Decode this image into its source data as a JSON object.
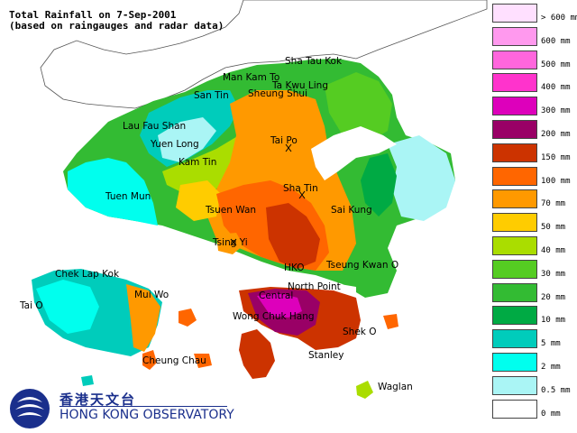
{
  "title": {
    "line1": "Total Rainfall on 7-Sep-2001",
    "line2": "(based on raingauges and radar data)"
  },
  "legend": [
    {
      "label": "> 600 mm",
      "color": "#ffe0ff"
    },
    {
      "label": "600 mm",
      "color": "#ff99ee"
    },
    {
      "label": "500 mm",
      "color": "#ff66dd"
    },
    {
      "label": "400 mm",
      "color": "#ff33cc"
    },
    {
      "label": "300 mm",
      "color": "#dd00bb"
    },
    {
      "label": "200 mm",
      "color": "#990066"
    },
    {
      "label": "150 mm",
      "color": "#cc3300"
    },
    {
      "label": "100 mm",
      "color": "#ff6600"
    },
    {
      "label": "70 mm",
      "color": "#ff9900"
    },
    {
      "label": "50 mm",
      "color": "#ffcc00"
    },
    {
      "label": "40 mm",
      "color": "#aadd00"
    },
    {
      "label": "30 mm",
      "color": "#55cc22"
    },
    {
      "label": "20 mm",
      "color": "#33bb33"
    },
    {
      "label": "10 mm",
      "color": "#00aa44"
    },
    {
      "label": "5 mm",
      "color": "#00ccbb"
    },
    {
      "label": "2 mm",
      "color": "#00ffee"
    },
    {
      "label": "0.5 mm",
      "color": "#aaf5f5"
    },
    {
      "label": "0 mm",
      "color": "#ffffff"
    }
  ],
  "places": [
    "Sha Tau Kok",
    "Man Kam To",
    "Ta Kwu Ling",
    "San Tin",
    "Sheung Shui",
    "Lau Fau Shan",
    "Yuen Long",
    "Tai Po",
    "Kam Tin",
    "Tuen Mun",
    "Sha Tin",
    "Tsuen Wan",
    "Sai Kung",
    "Tsing Yi",
    "HKO",
    "Tseung Kwan O",
    "Chek Lap Kok",
    "North Point",
    "Central",
    "Mui Wo",
    "Tai O",
    "Wong Chuk Hang",
    "Shek O",
    "Cheung Chau",
    "Stanley",
    "Waglan"
  ],
  "logo": {
    "chinese": "香港天文台",
    "english": "HONG KONG OBSERVATORY"
  }
}
